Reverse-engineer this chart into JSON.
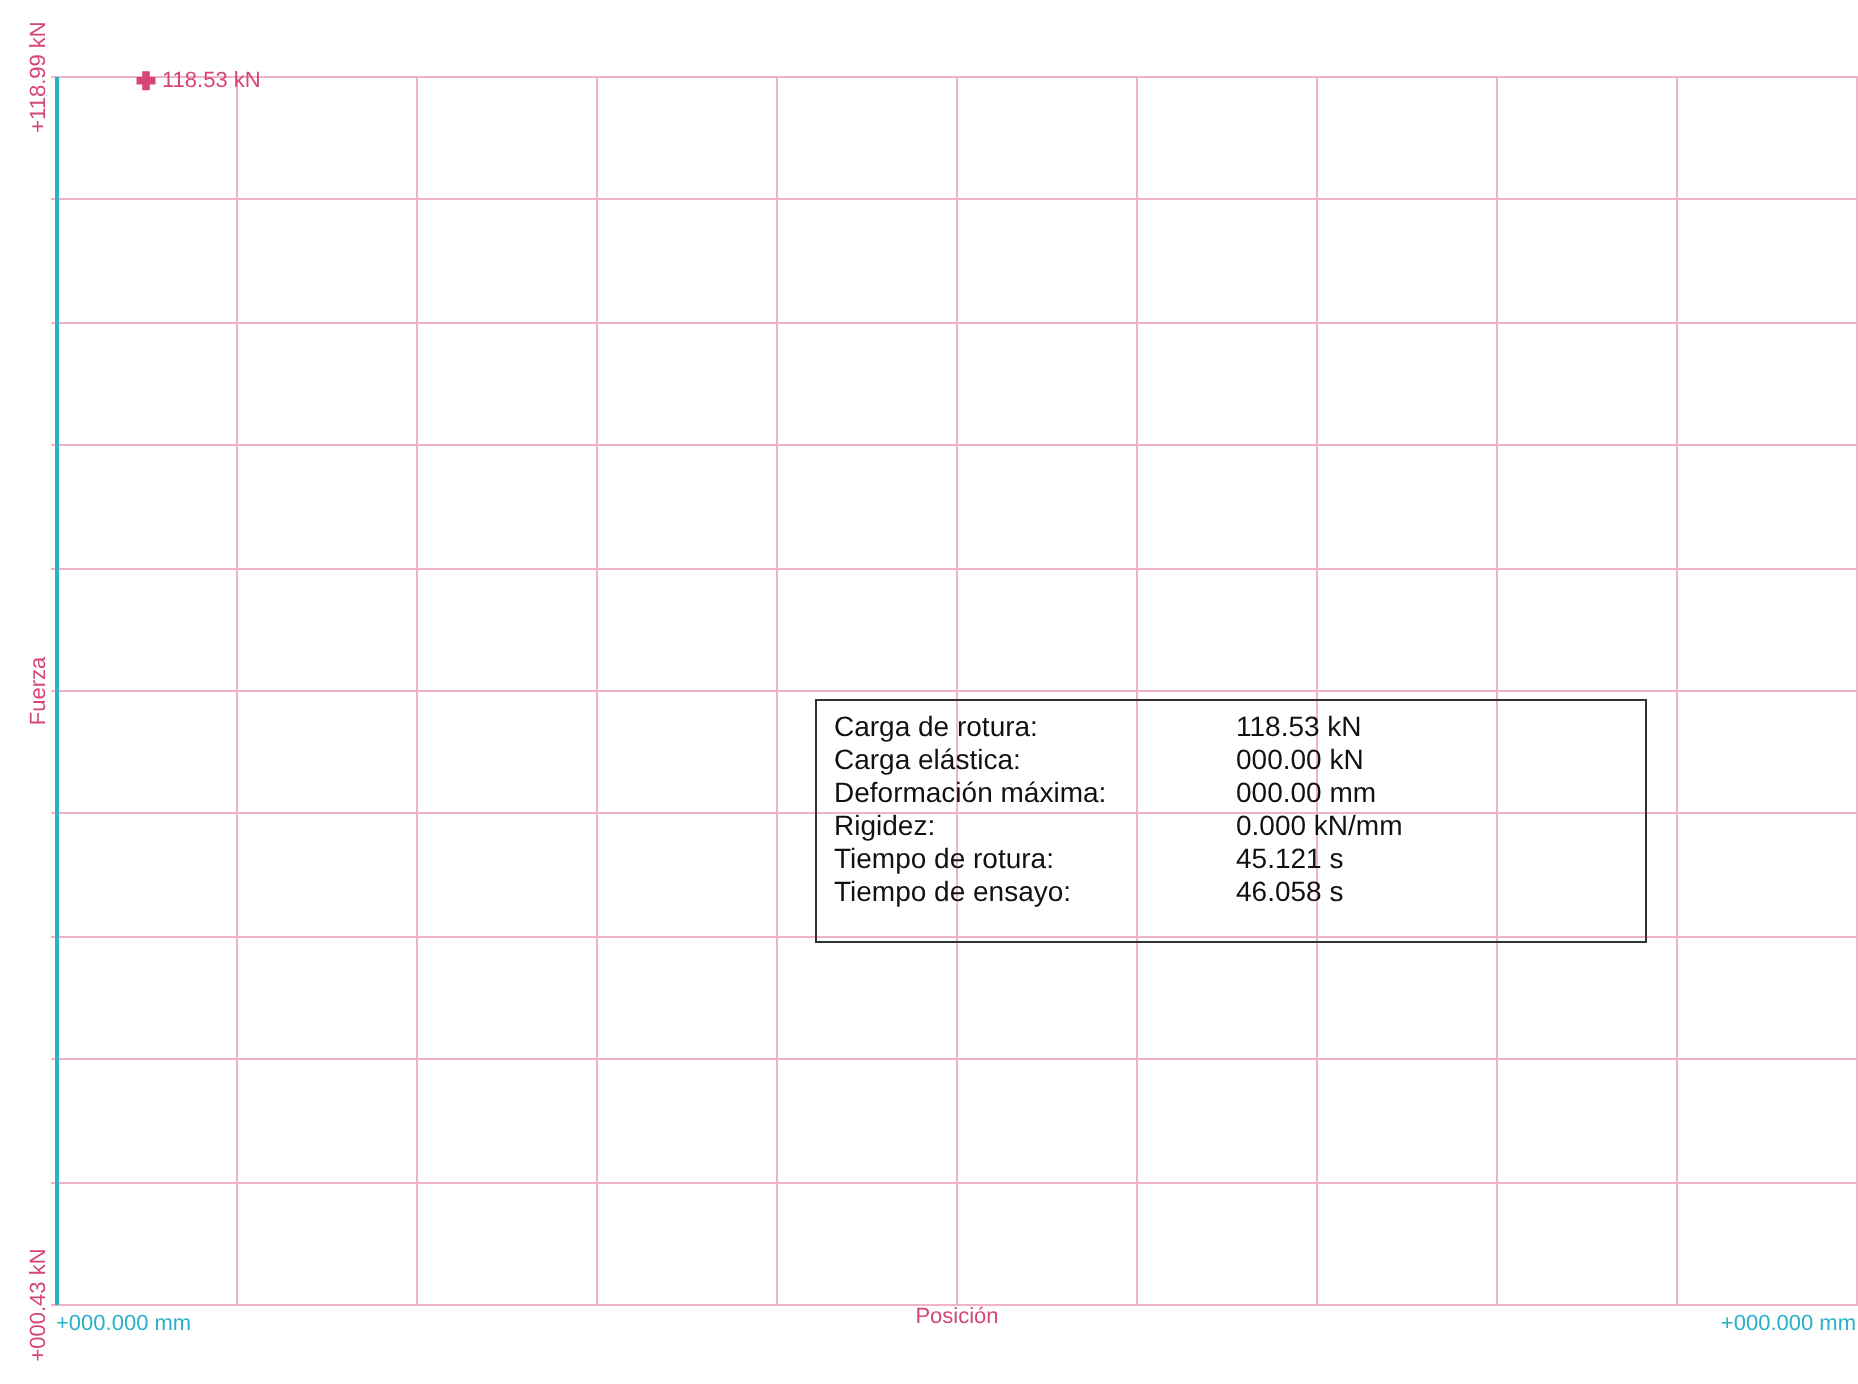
{
  "chart_data": {
    "type": "scatter",
    "xlabel": "Posición",
    "ylabel": "Fuerza",
    "categories": [
      null,
      null,
      null,
      null,
      null,
      null,
      null,
      null,
      null,
      null
    ],
    "series": [
      {
        "values": [
          118.53,
          null,
          null,
          null,
          null,
          null,
          null,
          null,
          null,
          null
        ],
        "color": "#d6457a",
        "value_labels": [
          "118.53 kN",
          null,
          null,
          null,
          null,
          null,
          null,
          null,
          null,
          null
        ]
      }
    ],
    "ylim": [
      0.43,
      118.99
    ],
    "yticks": [
      {
        "value": 0.43,
        "label": "+000.43 kN"
      },
      {
        "value": 12.29,
        "label": null
      },
      {
        "value": 24.14,
        "label": null
      },
      {
        "value": 36.0,
        "label": null
      },
      {
        "value": 47.85,
        "label": null
      },
      {
        "value": 59.71,
        "label": null
      },
      {
        "value": 71.57,
        "label": null
      },
      {
        "value": 83.42,
        "label": null
      },
      {
        "value": 95.28,
        "label": null
      },
      {
        "value": 107.13,
        "label": null
      },
      {
        "value": 118.99,
        "label": "+118.99 kN"
      }
    ],
    "grid": true,
    "marker": "cross",
    "annotations": [
      "+000.000 mm",
      "+000.000 mm",
      "Carga de rotura:",
      "118.53 kN",
      "Carga elástica:",
      "000.00 kN",
      "Deformación máxima:",
      "000.00 mm",
      "Rigidez:",
      "0.000 kN/mm",
      "Tiempo de rotura:",
      "45.121 s",
      "Tiempo de ensayo:",
      "46.058 s"
    ]
  }
}
